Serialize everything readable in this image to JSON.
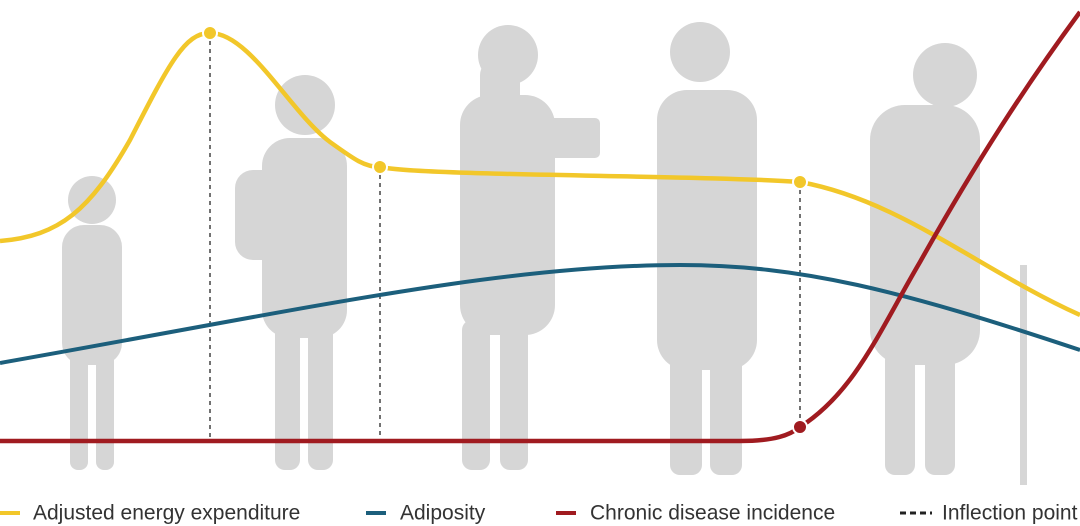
{
  "legend": {
    "items": [
      "Adjusted energy expenditure",
      "Adiposity",
      "Chronic disease incidence",
      "Inflection point"
    ]
  }
}
